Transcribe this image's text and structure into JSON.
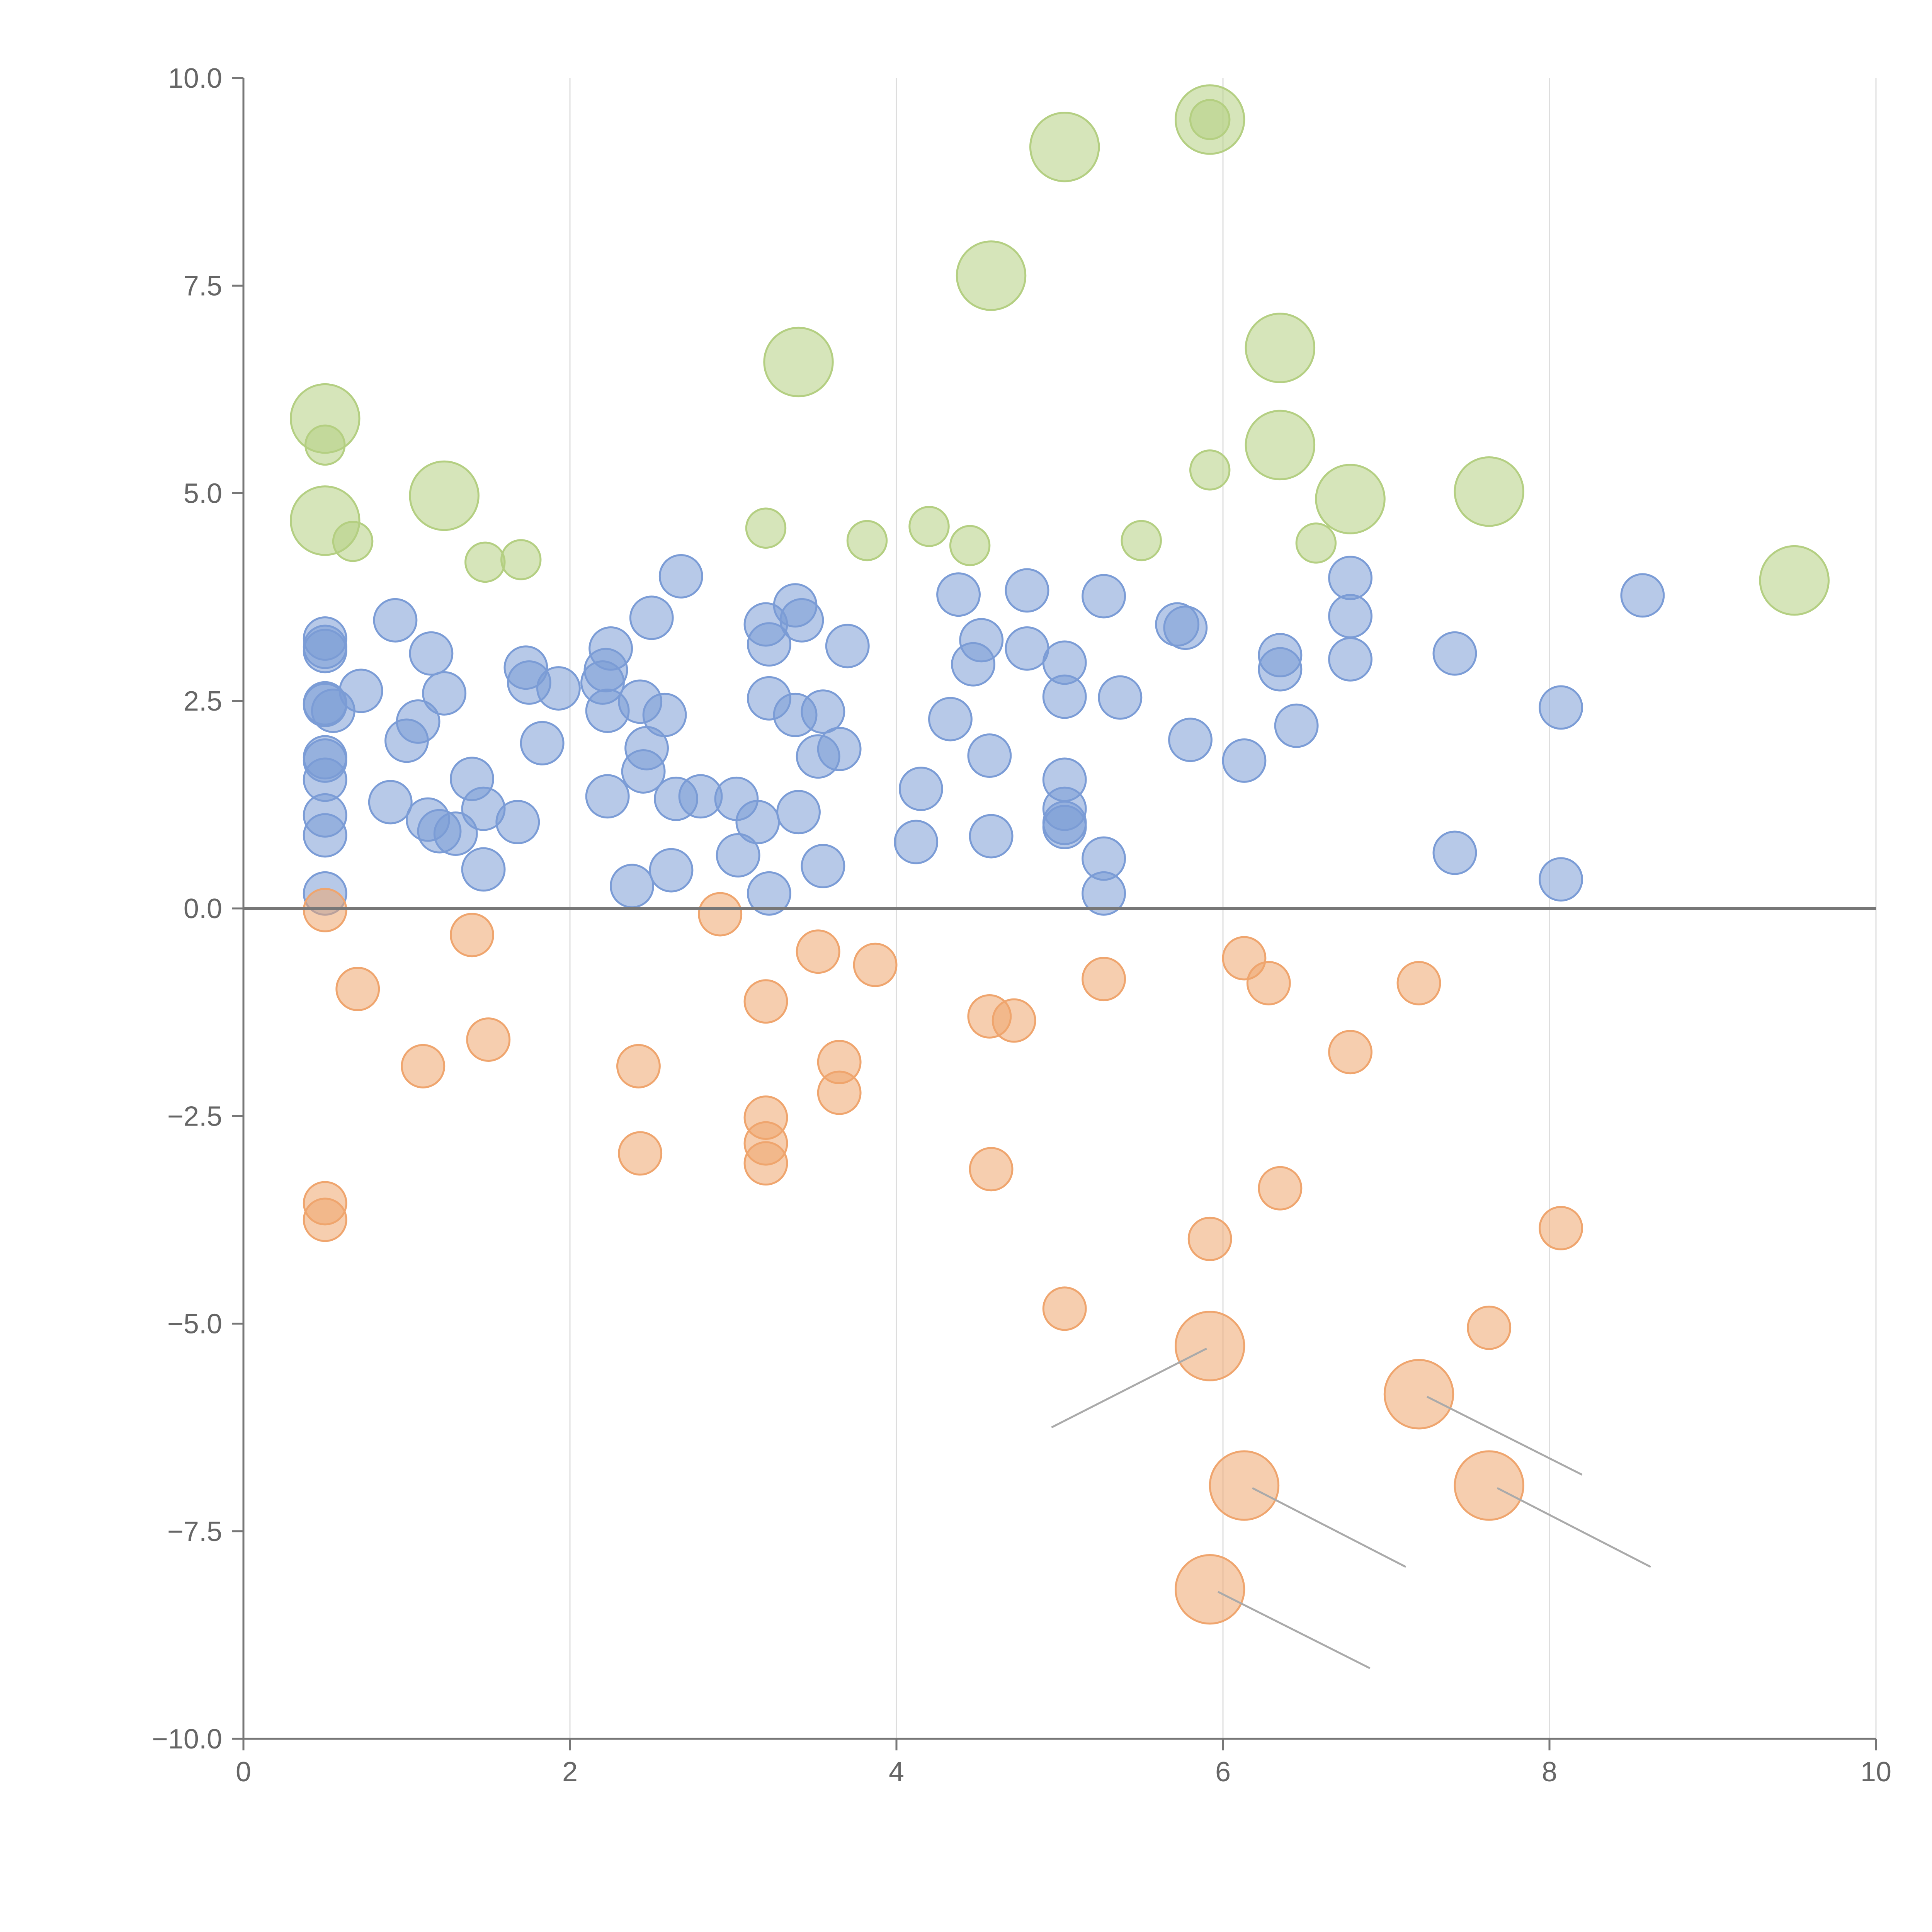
{
  "chart_data": {
    "type": "scatter",
    "title": "",
    "xlabel": "",
    "ylabel": "",
    "xlim": [
      0,
      10
    ],
    "ylim": [
      -10,
      10
    ],
    "x_ticks": [
      0,
      2,
      4,
      6,
      8,
      10
    ],
    "y_ticks": [
      -10,
      -7.5,
      -5,
      -2.5,
      0,
      2.5,
      5,
      7.5,
      10
    ],
    "x_tick_labels": [
      "0",
      "2",
      "4",
      "6",
      "8",
      "10"
    ],
    "y_tick_labels": [
      "−10.0",
      "−7.5",
      "−5.0",
      "−2.5",
      "0.0",
      "2.5",
      "5.0",
      "7.5",
      "10.0"
    ],
    "grid": "vertical",
    "zero_line": 0,
    "colors": {
      "blue": "#7b9cd6",
      "orange": "#efa56e",
      "green": "#b4cf82",
      "axis": "#777777",
      "grid": "#dddddd",
      "leader": "#aaaaaa"
    },
    "series": [
      {
        "name": "blue",
        "color": "#7b9cd6",
        "points": [
          {
            "x": 0.5,
            "y": 3.25,
            "r": 0.13
          },
          {
            "x": 0.5,
            "y": 3.1,
            "r": 0.13
          },
          {
            "x": 0.5,
            "y": 3.15,
            "r": 0.13
          },
          {
            "x": 0.5,
            "y": 2.47,
            "r": 0.13
          },
          {
            "x": 0.5,
            "y": 2.45,
            "r": 0.13
          },
          {
            "x": 0.55,
            "y": 2.38,
            "r": 0.13
          },
          {
            "x": 0.5,
            "y": 1.82,
            "r": 0.13
          },
          {
            "x": 0.5,
            "y": 1.78,
            "r": 0.13
          },
          {
            "x": 0.5,
            "y": 1.55,
            "r": 0.13
          },
          {
            "x": 0.5,
            "y": 1.12,
            "r": 0.13
          },
          {
            "x": 0.5,
            "y": 0.88,
            "r": 0.13
          },
          {
            "x": 0.5,
            "y": 0.18,
            "r": 0.13
          },
          {
            "x": 0.72,
            "y": 2.62,
            "r": 0.13
          },
          {
            "x": 0.93,
            "y": 3.47,
            "r": 0.13
          },
          {
            "x": 0.9,
            "y": 1.28,
            "r": 0.13
          },
          {
            "x": 1.0,
            "y": 2.02,
            "r": 0.13
          },
          {
            "x": 1.07,
            "y": 2.25,
            "r": 0.13
          },
          {
            "x": 1.15,
            "y": 3.07,
            "r": 0.13
          },
          {
            "x": 1.13,
            "y": 1.07,
            "r": 0.13
          },
          {
            "x": 1.2,
            "y": 0.93,
            "r": 0.13
          },
          {
            "x": 1.3,
            "y": 0.9,
            "r": 0.13
          },
          {
            "x": 1.23,
            "y": 2.59,
            "r": 0.13
          },
          {
            "x": 1.4,
            "y": 1.56,
            "r": 0.13
          },
          {
            "x": 1.47,
            "y": 1.2,
            "r": 0.13
          },
          {
            "x": 1.47,
            "y": 0.47,
            "r": 0.13
          },
          {
            "x": 1.68,
            "y": 1.04,
            "r": 0.13
          },
          {
            "x": 1.73,
            "y": 2.9,
            "r": 0.13
          },
          {
            "x": 1.75,
            "y": 2.72,
            "r": 0.13
          },
          {
            "x": 1.83,
            "y": 1.99,
            "r": 0.13
          },
          {
            "x": 1.93,
            "y": 2.65,
            "r": 0.13
          },
          {
            "x": 2.2,
            "y": 2.72,
            "r": 0.13
          },
          {
            "x": 2.22,
            "y": 2.87,
            "r": 0.13
          },
          {
            "x": 2.25,
            "y": 3.13,
            "r": 0.13
          },
          {
            "x": 2.23,
            "y": 2.38,
            "r": 0.13
          },
          {
            "x": 2.23,
            "y": 1.35,
            "r": 0.13
          },
          {
            "x": 2.38,
            "y": 0.27,
            "r": 0.13
          },
          {
            "x": 2.43,
            "y": 2.49,
            "r": 0.13
          },
          {
            "x": 2.45,
            "y": 1.65,
            "r": 0.13
          },
          {
            "x": 2.47,
            "y": 1.93,
            "r": 0.13
          },
          {
            "x": 2.5,
            "y": 3.5,
            "r": 0.13
          },
          {
            "x": 2.58,
            "y": 2.33,
            "r": 0.13
          },
          {
            "x": 2.62,
            "y": 0.46,
            "r": 0.13
          },
          {
            "x": 2.65,
            "y": 1.32,
            "r": 0.13
          },
          {
            "x": 2.68,
            "y": 4.0,
            "r": 0.13
          },
          {
            "x": 2.8,
            "y": 1.35,
            "r": 0.13
          },
          {
            "x": 3.02,
            "y": 1.32,
            "r": 0.13
          },
          {
            "x": 3.03,
            "y": 0.64,
            "r": 0.13
          },
          {
            "x": 3.15,
            "y": 1.04,
            "r": 0.13
          },
          {
            "x": 3.2,
            "y": 3.42,
            "r": 0.13
          },
          {
            "x": 3.22,
            "y": 3.18,
            "r": 0.13
          },
          {
            "x": 3.22,
            "y": 2.53,
            "r": 0.13
          },
          {
            "x": 3.22,
            "y": 0.18,
            "r": 0.13
          },
          {
            "x": 3.38,
            "y": 3.65,
            "r": 0.13
          },
          {
            "x": 3.42,
            "y": 3.47,
            "r": 0.13
          },
          {
            "x": 3.38,
            "y": 2.33,
            "r": 0.13
          },
          {
            "x": 3.4,
            "y": 1.16,
            "r": 0.13
          },
          {
            "x": 3.52,
            "y": 1.83,
            "r": 0.13
          },
          {
            "x": 3.55,
            "y": 2.37,
            "r": 0.13
          },
          {
            "x": 3.55,
            "y": 0.51,
            "r": 0.13
          },
          {
            "x": 3.65,
            "y": 1.92,
            "r": 0.13
          },
          {
            "x": 3.7,
            "y": 3.16,
            "r": 0.13
          },
          {
            "x": 4.12,
            "y": 0.8,
            "r": 0.13
          },
          {
            "x": 4.15,
            "y": 1.44,
            "r": 0.13
          },
          {
            "x": 4.33,
            "y": 2.28,
            "r": 0.13
          },
          {
            "x": 4.38,
            "y": 3.78,
            "r": 0.13
          },
          {
            "x": 4.47,
            "y": 2.94,
            "r": 0.13
          },
          {
            "x": 4.52,
            "y": 3.23,
            "r": 0.13
          },
          {
            "x": 4.57,
            "y": 1.84,
            "r": 0.13
          },
          {
            "x": 4.58,
            "y": 0.87,
            "r": 0.13
          },
          {
            "x": 4.8,
            "y": 3.83,
            "r": 0.13
          },
          {
            "x": 4.8,
            "y": 3.13,
            "r": 0.13
          },
          {
            "x": 5.03,
            "y": 2.96,
            "r": 0.13
          },
          {
            "x": 5.03,
            "y": 2.55,
            "r": 0.13
          },
          {
            "x": 5.03,
            "y": 1.55,
            "r": 0.13
          },
          {
            "x": 5.03,
            "y": 1.2,
            "r": 0.13
          },
          {
            "x": 5.03,
            "y": 1.03,
            "r": 0.13
          },
          {
            "x": 5.03,
            "y": 0.98,
            "r": 0.13
          },
          {
            "x": 5.27,
            "y": 3.76,
            "r": 0.13
          },
          {
            "x": 5.27,
            "y": 0.6,
            "r": 0.13
          },
          {
            "x": 5.27,
            "y": 0.18,
            "r": 0.13
          },
          {
            "x": 5.37,
            "y": 2.54,
            "r": 0.13
          },
          {
            "x": 5.72,
            "y": 3.42,
            "r": 0.13
          },
          {
            "x": 5.77,
            "y": 3.38,
            "r": 0.13
          },
          {
            "x": 5.8,
            "y": 2.03,
            "r": 0.13
          },
          {
            "x": 6.13,
            "y": 1.78,
            "r": 0.13
          },
          {
            "x": 6.35,
            "y": 3.05,
            "r": 0.13
          },
          {
            "x": 6.35,
            "y": 2.88,
            "r": 0.13
          },
          {
            "x": 6.45,
            "y": 2.2,
            "r": 0.13
          },
          {
            "x": 6.78,
            "y": 3.98,
            "r": 0.13
          },
          {
            "x": 6.78,
            "y": 3.52,
            "r": 0.13
          },
          {
            "x": 6.78,
            "y": 3.0,
            "r": 0.13
          },
          {
            "x": 7.42,
            "y": 3.07,
            "r": 0.13
          },
          {
            "x": 7.42,
            "y": 0.67,
            "r": 0.13
          },
          {
            "x": 8.07,
            "y": 2.42,
            "r": 0.13
          },
          {
            "x": 8.07,
            "y": 0.35,
            "r": 0.13
          },
          {
            "x": 8.57,
            "y": 3.77,
            "r": 0.13
          }
        ]
      },
      {
        "name": "orange",
        "color": "#efa56e",
        "points": [
          {
            "x": 0.5,
            "y": -0.02,
            "r": 0.13
          },
          {
            "x": 0.7,
            "y": -0.97,
            "r": 0.13
          },
          {
            "x": 1.1,
            "y": -1.9,
            "r": 0.13
          },
          {
            "x": 1.4,
            "y": -0.32,
            "r": 0.13
          },
          {
            "x": 1.5,
            "y": -1.58,
            "r": 0.13
          },
          {
            "x": 0.5,
            "y": -3.55,
            "r": 0.13
          },
          {
            "x": 0.5,
            "y": -3.75,
            "r": 0.13
          },
          {
            "x": 2.42,
            "y": -1.9,
            "r": 0.13
          },
          {
            "x": 2.43,
            "y": -2.95,
            "r": 0.13
          },
          {
            "x": 2.92,
            "y": -0.07,
            "r": 0.13
          },
          {
            "x": 3.2,
            "y": -1.12,
            "r": 0.13
          },
          {
            "x": 3.2,
            "y": -2.52,
            "r": 0.13
          },
          {
            "x": 3.2,
            "y": -2.83,
            "r": 0.13
          },
          {
            "x": 3.2,
            "y": -3.07,
            "r": 0.13
          },
          {
            "x": 3.52,
            "y": -0.52,
            "r": 0.13
          },
          {
            "x": 3.65,
            "y": -1.85,
            "r": 0.13
          },
          {
            "x": 3.65,
            "y": -2.22,
            "r": 0.13
          },
          {
            "x": 3.87,
            "y": -0.68,
            "r": 0.13
          },
          {
            "x": 4.57,
            "y": -1.3,
            "r": 0.13
          },
          {
            "x": 4.72,
            "y": -1.35,
            "r": 0.13
          },
          {
            "x": 4.58,
            "y": -3.14,
            "r": 0.13
          },
          {
            "x": 5.03,
            "y": -4.82,
            "r": 0.13
          },
          {
            "x": 5.27,
            "y": -0.85,
            "r": 0.13
          },
          {
            "x": 5.92,
            "y": -3.98,
            "r": 0.13
          },
          {
            "x": 6.13,
            "y": -0.6,
            "r": 0.13
          },
          {
            "x": 6.28,
            "y": -0.9,
            "r": 0.13
          },
          {
            "x": 6.35,
            "y": -3.37,
            "r": 0.13
          },
          {
            "x": 6.78,
            "y": -1.73,
            "r": 0.13
          },
          {
            "x": 7.2,
            "y": -0.9,
            "r": 0.13
          },
          {
            "x": 7.63,
            "y": -5.05,
            "r": 0.13
          },
          {
            "x": 8.07,
            "y": -3.85,
            "r": 0.13
          },
          {
            "x": 5.92,
            "y": -5.27,
            "r": 0.21,
            "leader": [
              5.9,
              -5.3,
              4.95,
              -6.25
            ]
          },
          {
            "x": 7.2,
            "y": -5.85,
            "r": 0.21,
            "leader": [
              7.25,
              -5.88,
              8.2,
              -6.82
            ]
          },
          {
            "x": 6.13,
            "y": -6.95,
            "r": 0.21,
            "leader": [
              6.18,
              -6.98,
              7.12,
              -7.93
            ]
          },
          {
            "x": 7.63,
            "y": -6.95,
            "r": 0.21,
            "leader": [
              7.68,
              -6.98,
              8.62,
              -7.93
            ]
          },
          {
            "x": 5.92,
            "y": -8.2,
            "r": 0.21,
            "leader": [
              5.97,
              -8.23,
              6.9,
              -9.15
            ]
          }
        ]
      },
      {
        "name": "green",
        "color": "#b4cf82",
        "points": [
          {
            "x": 0.5,
            "y": 5.58,
            "r": 0.12
          },
          {
            "x": 0.67,
            "y": 4.42,
            "r": 0.12
          },
          {
            "x": 1.48,
            "y": 4.17,
            "r": 0.12
          },
          {
            "x": 1.7,
            "y": 4.2,
            "r": 0.12
          },
          {
            "x": 3.2,
            "y": 4.58,
            "r": 0.12
          },
          {
            "x": 3.82,
            "y": 4.43,
            "r": 0.12
          },
          {
            "x": 4.2,
            "y": 4.6,
            "r": 0.12
          },
          {
            "x": 4.45,
            "y": 4.37,
            "r": 0.12
          },
          {
            "x": 5.5,
            "y": 4.43,
            "r": 0.12
          },
          {
            "x": 5.92,
            "y": 5.28,
            "r": 0.12
          },
          {
            "x": 5.92,
            "y": 9.5,
            "r": 0.12
          },
          {
            "x": 6.57,
            "y": 4.4,
            "r": 0.12
          },
          {
            "x": 0.5,
            "y": 5.9,
            "r": 0.21
          },
          {
            "x": 0.5,
            "y": 4.67,
            "r": 0.21
          },
          {
            "x": 1.23,
            "y": 4.97,
            "r": 0.21
          },
          {
            "x": 3.4,
            "y": 6.58,
            "r": 0.21
          },
          {
            "x": 4.58,
            "y": 7.62,
            "r": 0.21
          },
          {
            "x": 5.03,
            "y": 9.17,
            "r": 0.21
          },
          {
            "x": 5.92,
            "y": 9.5,
            "r": 0.21
          },
          {
            "x": 6.35,
            "y": 6.75,
            "r": 0.21
          },
          {
            "x": 6.35,
            "y": 5.58,
            "r": 0.21
          },
          {
            "x": 6.78,
            "y": 4.93,
            "r": 0.21
          },
          {
            "x": 7.63,
            "y": 5.02,
            "r": 0.21
          },
          {
            "x": 9.5,
            "y": 3.95,
            "r": 0.21
          }
        ]
      }
    ]
  }
}
